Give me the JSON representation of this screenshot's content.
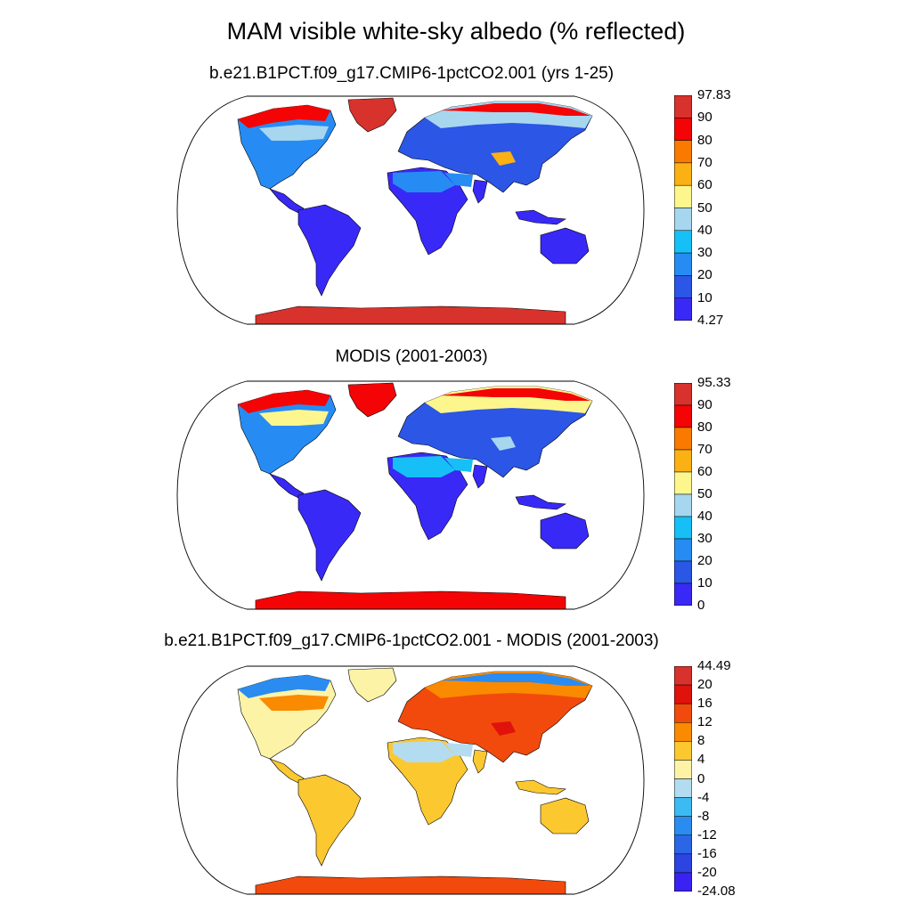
{
  "title": "MAM visible white-sky albedo (% reflected)",
  "panels": [
    {
      "id": "model",
      "subtitle": "b.e21.B1PCT.f09_g17.CMIP6-1pctCO2.001 (yrs 1-25)",
      "colorbar": {
        "labels": [
          "97.83",
          "90",
          "80",
          "70",
          "60",
          "50",
          "40",
          "30",
          "20",
          "10",
          "4.27"
        ],
        "colors": [
          "#d8322c",
          "#f40404",
          "#fa7a00",
          "#fbb014",
          "#fdf68c",
          "#a7d6ef",
          "#16c0f6",
          "#268cf4",
          "#2b56e6",
          "#3929f6"
        ]
      },
      "fields": {
        "ocean_color": "#ffffff",
        "greenland_color": "#d8322c",
        "antarctica_color": "#d8322c",
        "arctic_fringe_color": "#f40404",
        "boreal_color": "#2b56e6",
        "high_band_color": "#a7d6ef",
        "temperate_color": "#268cf4",
        "desert_color": "#268cf4",
        "tropics_color": "#3929f6",
        "plateau_color": "#fbb014"
      }
    },
    {
      "id": "obs",
      "subtitle": "MODIS (2001-2003)",
      "colorbar": {
        "labels": [
          "95.33",
          "90",
          "80",
          "70",
          "60",
          "50",
          "40",
          "30",
          "20",
          "10",
          "0"
        ],
        "colors": [
          "#d8322c",
          "#f40404",
          "#fa7a00",
          "#fbb014",
          "#fdf68c",
          "#a7d6ef",
          "#16c0f6",
          "#268cf4",
          "#2b56e6",
          "#3929f6"
        ]
      },
      "fields": {
        "ocean_color": "#ffffff",
        "greenland_color": "#f40404",
        "antarctica_color": "#f40404",
        "arctic_fringe_color": "#f40404",
        "boreal_color": "#2b56e6",
        "high_band_color": "#fdf68c",
        "temperate_color": "#268cf4",
        "desert_color": "#16c0f6",
        "tropics_color": "#3929f6",
        "plateau_color": "#a7d6ef"
      }
    },
    {
      "id": "diff",
      "subtitle": "b.e21.B1PCT.f09_g17.CMIP6-1pctCO2.001 - MODIS (2001-2003)",
      "colorbar": {
        "labels": [
          "44.49",
          "20",
          "16",
          "12",
          "8",
          "4",
          "0",
          "-4",
          "-8",
          "-12",
          "-16",
          "-20",
          "-24.08"
        ],
        "colors": [
          "#d8322c",
          "#e0120c",
          "#f24a0c",
          "#fa8a00",
          "#fcc830",
          "#fdf3a6",
          "#b4dcf0",
          "#3cbaf2",
          "#2a8cf0",
          "#2b66e6",
          "#2c44e2",
          "#3a22f2"
        ]
      },
      "fields": {
        "ocean_color": "#ffffff",
        "greenland_color": "#fdf3a6",
        "antarctica_color": "#f24a0c",
        "arctic_fringe_color": "#2a8cf0",
        "boreal_color": "#f24a0c",
        "high_band_color": "#fa8a00",
        "temperate_color": "#fdf3a6",
        "desert_color": "#b4dcf0",
        "tropics_color": "#fcc830",
        "plateau_color": "#e0120c"
      }
    }
  ]
}
